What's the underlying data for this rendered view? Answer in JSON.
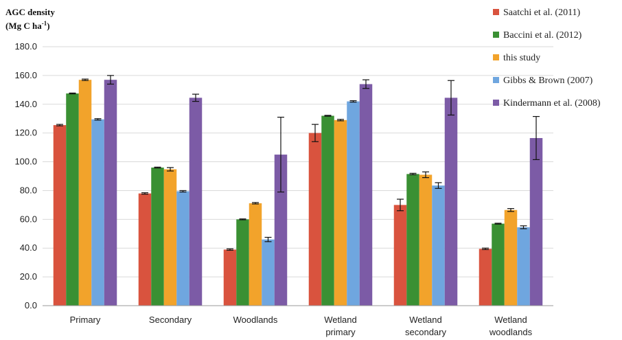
{
  "chart_data": {
    "type": "bar",
    "ylabel": "AGC density",
    "ylabel_unit_main": "(Mg C ha",
    "ylabel_unit_sup": "-1",
    "ylabel_unit_end": ")",
    "ylim": [
      0,
      180
    ],
    "yticks": [
      "0.0",
      "20.0",
      "40.0",
      "60.0",
      "80.0",
      "100.0",
      "120.0",
      "140.0",
      "160.0",
      "180.0"
    ],
    "legend_position": "right",
    "categories": [
      [
        "Primary"
      ],
      [
        "Secondary"
      ],
      [
        "Woodlands"
      ],
      [
        "Wetland",
        "primary"
      ],
      [
        "Wetland",
        "secondary"
      ],
      [
        "Wetland",
        "woodlands"
      ]
    ],
    "series": [
      {
        "name": "Saatchi et al. (2011)",
        "color": "#D9533E",
        "values": [
          125.5,
          78.0,
          39.0,
          120.0,
          70.0,
          39.5
        ],
        "errors": [
          0.5,
          0.5,
          0.5,
          6.0,
          4.0,
          0.5
        ]
      },
      {
        "name": "Baccini et al. (2012)",
        "color": "#3A9033",
        "values": [
          147.5,
          96.0,
          60.0,
          132.0,
          91.5,
          57.0
        ],
        "errors": [
          0.3,
          0.3,
          0.3,
          0.3,
          0.5,
          0.3
        ]
      },
      {
        "name": "this study",
        "color": "#F2A32B",
        "values": [
          157.0,
          94.8,
          71.2,
          129.0,
          91.0,
          66.5
        ],
        "errors": [
          0.5,
          1.2,
          0.5,
          0.5,
          2.0,
          1.0
        ]
      },
      {
        "name": "Gibbs & Brown (2007)",
        "color": "#6FA6DF",
        "values": [
          129.5,
          79.5,
          46.0,
          142.0,
          83.5,
          54.5
        ],
        "errors": [
          0.5,
          0.5,
          1.5,
          0.5,
          2.0,
          1.0
        ]
      },
      {
        "name": "Kindermann et al. (2008)",
        "color": "#7C5BA6",
        "values": [
          157.0,
          144.5,
          105.0,
          154.0,
          144.5,
          116.5
        ],
        "errors": [
          3.0,
          2.5,
          26.0,
          3.0,
          12.0,
          15.0
        ]
      }
    ]
  }
}
